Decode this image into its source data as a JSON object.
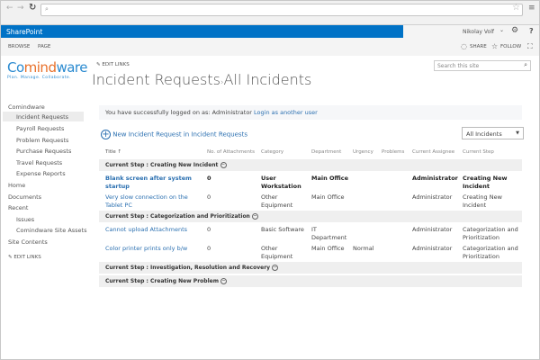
{
  "browser": {
    "url": ""
  },
  "suitebar": {
    "brand": "SharePoint",
    "user": "Nikolay Volf",
    "user_chevron": "⌄",
    "help": "?"
  },
  "ribbon": {
    "tabs": [
      "BROWSE",
      "PAGE"
    ],
    "share": "SHARE",
    "follow": "FOLLOW"
  },
  "logo": {
    "name_part1": "Co",
    "name_part2": "mind",
    "name_part3": "ware",
    "tagline": "Plan. Manage. Collaborate."
  },
  "edit_links": "EDIT LINKS",
  "title": {
    "list": "Incident Requests",
    "sep": "›",
    "view": "All Incidents"
  },
  "search": {
    "placeholder": "Search this site"
  },
  "sidebar": {
    "items": [
      {
        "label": "Comindware"
      },
      {
        "label": "Incident Requests"
      },
      {
        "label": "Payroll Requests"
      },
      {
        "label": "Problem Requests"
      },
      {
        "label": "Purchase Requests"
      },
      {
        "label": "Travel Requests"
      },
      {
        "label": "Expense Reports"
      },
      {
        "label": "Home"
      },
      {
        "label": "Documents"
      },
      {
        "label": "Recent"
      },
      {
        "label": "Issues"
      },
      {
        "label": "Comindware Site Assets"
      },
      {
        "label": "Site Contents"
      }
    ],
    "edit_links": "EDIT LINKS"
  },
  "message": {
    "text": "You have successfully logged on as: Administrator",
    "link": "Login as another user"
  },
  "new_item": "New Incident Request in Incident Requests",
  "view_select": "All Incidents",
  "columns": [
    "Title ↑",
    "No. of Attachments",
    "Category",
    "Department",
    "Urgency",
    "Problems",
    "Current Assignee",
    "Current Step"
  ],
  "groups": [
    {
      "label": "Current Step :  Creating New Incident",
      "rows": [
        {
          "title": "Blank screen after system startup",
          "attachments": "0",
          "category": "User Workstation",
          "department": "Main Office",
          "urgency": "",
          "problems": "",
          "assignee": "Administrator",
          "step": "Creating New Incident",
          "bold": true
        },
        {
          "title": "Very slow connection on the Tablet PC",
          "attachments": "0",
          "category": "Other Equipment",
          "department": "Main Office",
          "urgency": "",
          "problems": "",
          "assignee": "Administrator",
          "step": "Creating New Incident"
        }
      ]
    },
    {
      "label": "Current Step :  Categorization and Prioritization",
      "rows": [
        {
          "title": "Cannot upload Attachments",
          "attachments": "0",
          "category": "Basic Software",
          "department": "IT Department",
          "urgency": "",
          "problems": "",
          "assignee": "Administrator",
          "step": "Categorization and Prioritization"
        },
        {
          "title": "Color printer prints only b/w",
          "attachments": "0",
          "category": "Other Equipment",
          "department": "Main Office",
          "urgency": "Normal",
          "problems": "",
          "assignee": "Administrator",
          "step": "Categorization and Prioritization"
        }
      ]
    },
    {
      "label": "Current Step :  Investigation, Resolution and Recovery",
      "rows": []
    },
    {
      "label": "Current Step :  Creating New Problem",
      "rows": []
    }
  ],
  "colors": {
    "brand_blue": "#0072c6",
    "link": "#2a6fb0",
    "logo_orange": "#e8702a"
  }
}
